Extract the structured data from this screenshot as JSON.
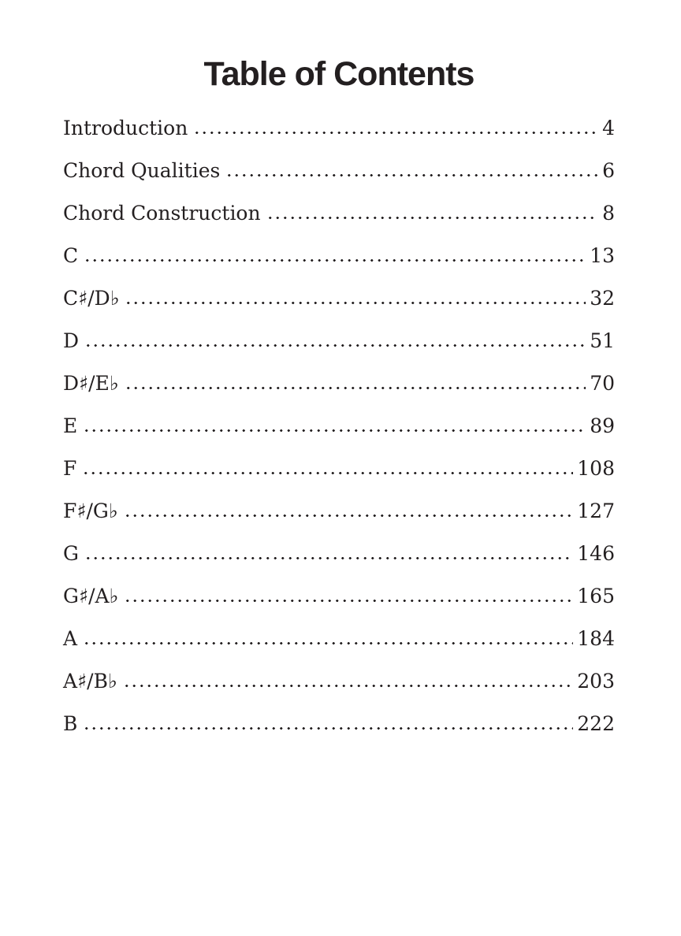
{
  "page": {
    "title": "Table of Contents",
    "colors": {
      "text": "#231f20",
      "background": "#ffffff"
    },
    "entries": [
      {
        "label": "Introduction",
        "page": "4"
      },
      {
        "label": "Chord Qualities",
        "page": "6"
      },
      {
        "label": "Chord Construction",
        "page": "8"
      },
      {
        "label": "C",
        "page": "13"
      },
      {
        "label": "C♯/D♭",
        "page": "32"
      },
      {
        "label": "D",
        "page": "51"
      },
      {
        "label": "D♯/E♭",
        "page": "70"
      },
      {
        "label": "E",
        "page": "89"
      },
      {
        "label": "F",
        "page": "108"
      },
      {
        "label": "F♯/G♭",
        "page": "127"
      },
      {
        "label": "G",
        "page": "146"
      },
      {
        "label": "G♯/A♭",
        "page": "165"
      },
      {
        "label": "A",
        "page": "184"
      },
      {
        "label": "A♯/B♭",
        "page": "203"
      },
      {
        "label": "B",
        "page": "222"
      }
    ]
  }
}
